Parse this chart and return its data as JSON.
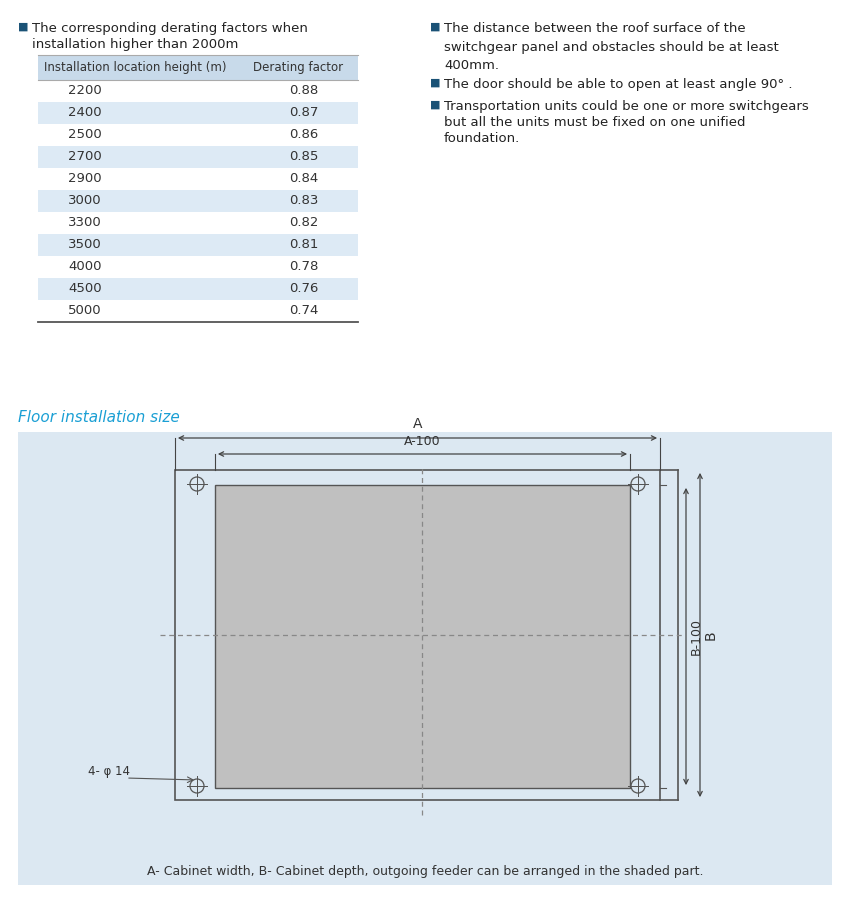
{
  "bg_color": "#ffffff",
  "table_header_bg": "#c8daea",
  "table_alt_bg": "#ddeaf5",
  "table_border_color": "#888888",
  "bullet_color": "#1a5276",
  "section_title_color": "#1a9fd4",
  "diagram_bg": "#dce8f2",
  "diagram_rect_fill": "#c0c0c0",
  "diagram_line_color": "#555555",
  "diagram_dashed_color": "#888888",
  "bullet_char": "■",
  "col1_header": "Installation location height (m)",
  "col2_header": "Derating factor",
  "table_data": [
    [
      "2200",
      "0.88"
    ],
    [
      "2400",
      "0.87"
    ],
    [
      "2500",
      "0.86"
    ],
    [
      "2700",
      "0.85"
    ],
    [
      "2900",
      "0.84"
    ],
    [
      "3000",
      "0.83"
    ],
    [
      "3300",
      "0.82"
    ],
    [
      "3500",
      "0.81"
    ],
    [
      "4000",
      "0.78"
    ],
    [
      "4500",
      "0.76"
    ],
    [
      "5000",
      "0.74"
    ]
  ],
  "bullet_text_left_1a": "The corresponding derating factors when",
  "bullet_text_left_1b": "installation higher than 2000m",
  "bullet_text_right_1": "The distance between the roof surface of the\nswitchgear panel and obstacles should be at least\n400mm.",
  "bullet_text_right_2": "The door should be able to open at least angle 90° .",
  "bullet_text_right_3a": "Transportation units could be one or more switchgears",
  "bullet_text_right_3b": "but all the units must be fixed on one unified",
  "bullet_text_right_3c": "foundation.",
  "floor_title": "Floor installation size",
  "diagram_label_A": "A",
  "diagram_label_A100": "A-100",
  "diagram_label_B100": "B-100",
  "diagram_label_B": "B",
  "diagram_label_hole": "4- φ 14",
  "diagram_caption": "A- Cabinet width, B- Cabinet depth, outgoing feeder can be arranged in the shaded part."
}
